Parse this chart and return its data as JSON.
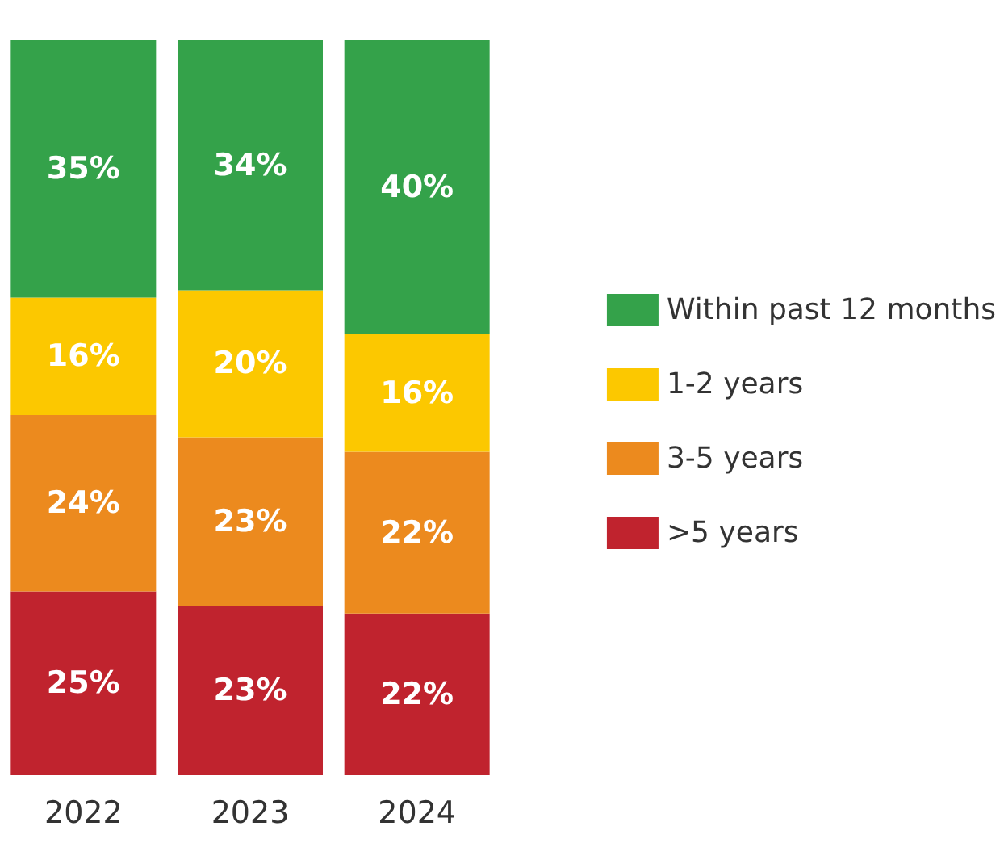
{
  "chart_data": {
    "type": "bar",
    "stacked": true,
    "categories": [
      "2022",
      "2023",
      "2024"
    ],
    "series": [
      {
        "name": ">5 years",
        "color": "#c0232e",
        "values": [
          25,
          23,
          22
        ],
        "value_labels": [
          "25%",
          "23%",
          "22%"
        ]
      },
      {
        "name": "3-5 years",
        "color": "#ec8a1e",
        "values": [
          24,
          23,
          22
        ],
        "value_labels": [
          "24%",
          "23%",
          "22%"
        ]
      },
      {
        "name": "1-2 years",
        "color": "#fcc800",
        "values": [
          16,
          20,
          16
        ],
        "value_labels": [
          "16%",
          "20%",
          "16%"
        ]
      },
      {
        "name": "Within past 12 months",
        "color": "#34a24a",
        "values": [
          35,
          34,
          40
        ],
        "value_labels": [
          "35%",
          "34%",
          "40%"
        ]
      }
    ],
    "legend": "right"
  }
}
